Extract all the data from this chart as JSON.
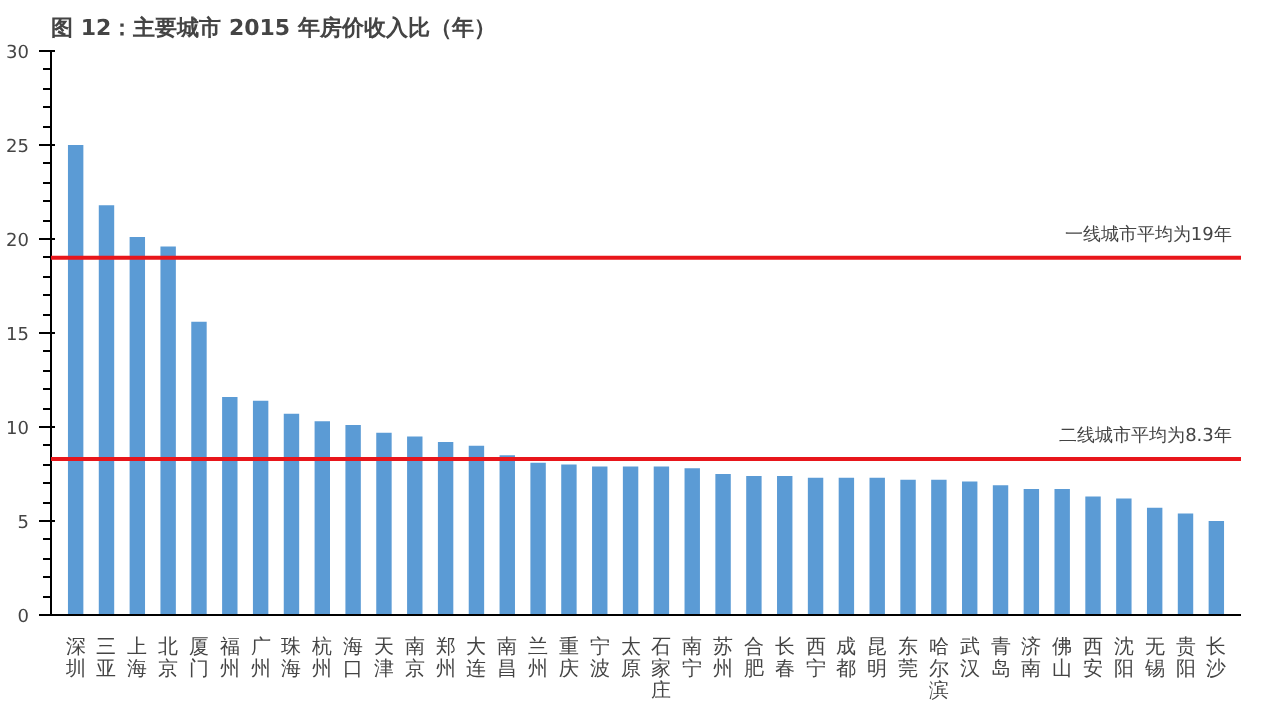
{
  "chart_data": {
    "type": "bar",
    "title": "图 12：主要城市 2015 年房价收入比（年）",
    "categories": [
      "深圳",
      "三亚",
      "上海",
      "北京",
      "厦门",
      "福州",
      "广州",
      "珠海",
      "杭州",
      "海口",
      "天津",
      "南京",
      "郑州",
      "大连",
      "南昌",
      "兰州",
      "重庆",
      "宁波",
      "太原",
      "石家庄",
      "南宁",
      "苏州",
      "合肥",
      "长春",
      "西宁",
      "成都",
      "昆明",
      "东莞",
      "哈尔滨",
      "武汉",
      "青岛",
      "济南",
      "佛山",
      "西安",
      "沈阳",
      "无锡",
      "贵阳",
      "长沙"
    ],
    "values": [
      25.0,
      21.8,
      20.1,
      19.6,
      15.6,
      11.6,
      11.4,
      10.7,
      10.3,
      10.1,
      9.7,
      9.5,
      9.2,
      9.0,
      8.5,
      8.1,
      8.0,
      7.9,
      7.9,
      7.9,
      7.8,
      7.5,
      7.4,
      7.4,
      7.3,
      7.3,
      7.3,
      7.2,
      7.2,
      7.1,
      6.9,
      6.7,
      6.7,
      6.3,
      6.2,
      5.7,
      5.4,
      5.0
    ],
    "color": "#5b9bd5",
    "ylim": [
      0,
      30
    ],
    "yticks": [
      0,
      5,
      10,
      15,
      20,
      25,
      30
    ],
    "grid": false,
    "ref_lines": [
      {
        "axis": "y",
        "value": 19,
        "label": "一线城市平均为19年",
        "color": "#e8161b"
      },
      {
        "axis": "y",
        "value": 8.3,
        "label": "二线城市平均为8.3年",
        "color": "#e8161b"
      }
    ]
  }
}
